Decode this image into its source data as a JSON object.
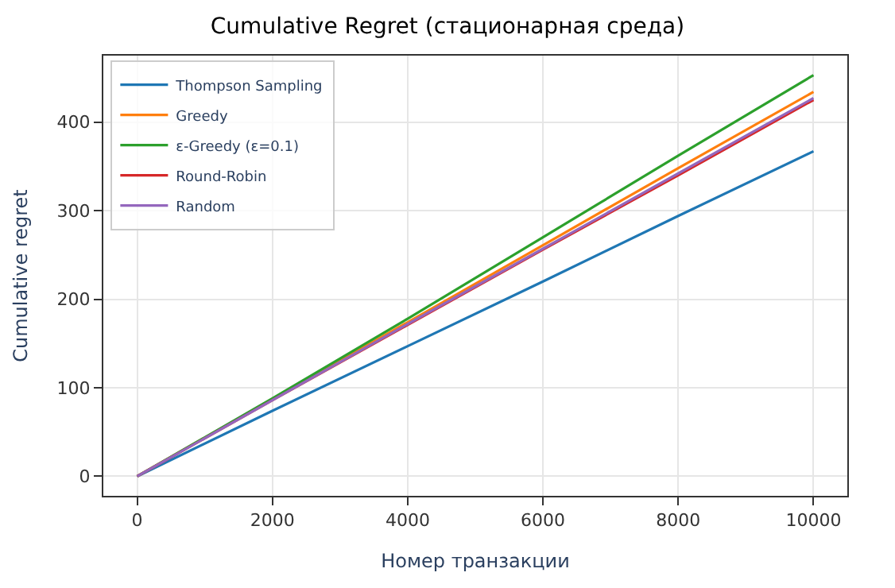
{
  "chart_data": {
    "type": "line",
    "title": "Cumulative Regret (стационарная среда)",
    "xlabel": "Номер транзакции",
    "ylabel": "Cumulative regret",
    "x": [
      0,
      2000,
      4000,
      6000,
      8000,
      10000
    ],
    "series": [
      {
        "name": "Thompson Sampling",
        "color": "#1f77b4",
        "values": [
          0,
          74,
          147,
          220,
          294,
          367
        ]
      },
      {
        "name": "Greedy",
        "color": "#ff7f0e",
        "values": [
          0,
          87,
          174,
          261,
          348,
          434
        ]
      },
      {
        "name": "ε-Greedy (ε=0.1)",
        "color": "#2ca02c",
        "values": [
          0,
          88,
          178,
          270,
          362,
          453
        ]
      },
      {
        "name": "Round-Robin",
        "color": "#d62728",
        "values": [
          0,
          86,
          171,
          256,
          340,
          425
        ]
      },
      {
        "name": "Random",
        "color": "#9467bd",
        "values": [
          0,
          86,
          172,
          257,
          342,
          427
        ]
      }
    ],
    "xlim": [
      -500,
      10500
    ],
    "xticks": [
      0,
      2000,
      4000,
      6000,
      8000,
      10000
    ],
    "ylim": [
      -22,
      475
    ],
    "yticks": [
      0,
      100,
      200,
      300,
      400
    ],
    "grid": true,
    "legend": "top left"
  }
}
